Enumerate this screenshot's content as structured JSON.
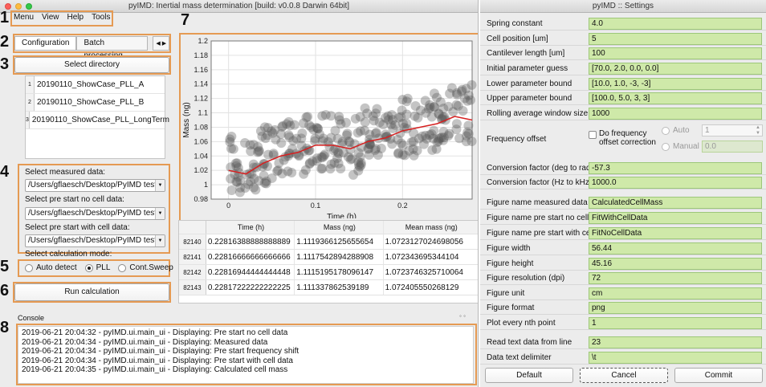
{
  "main_window": {
    "title": "pyIMD: Inertial mass determination [build: v0.0.8 Darwin 64bit]",
    "menu": [
      "Menu",
      "View",
      "Help",
      "Tools"
    ],
    "tabs": [
      "Configuration",
      "Batch processing"
    ],
    "select_directory_label": "Select directory",
    "directories": [
      {
        "num": "1",
        "name": "20190110_ShowCase_PLL_A"
      },
      {
        "num": "2",
        "name": "20190110_ShowCase_PLL_B"
      },
      {
        "num": "3",
        "name": "20190110_ShowCase_PLL_LongTerm"
      }
    ],
    "measured_label": "Select measured data:",
    "measured_value": "/Users/gflaesch/Desktop/PyIMD test/p",
    "prestart_no_cell_label": "Select pre start no cell data:",
    "prestart_no_cell_value": "/Users/gflaesch/Desktop/PyIMD test/p",
    "prestart_with_cell_label": "Select pre start with cell data:",
    "prestart_with_cell_value": "/Users/gflaesch/Desktop/PyIMD test/p",
    "calc_mode_label": "Select calculation mode:",
    "modes": [
      "Auto detect",
      "PLL",
      "Cont.Sweep"
    ],
    "selected_mode": "PLL",
    "run_label": "Run calculation",
    "console_label": "Console",
    "console_lines": [
      "2019-06-21 20:04:32 - pyIMD.ui.main_ui - Displaying: Pre start no cell data",
      "2019-06-21 20:04:34 - pyIMD.ui.main_ui - Displaying: Measured data",
      "2019-06-21 20:04:34 - pyIMD.ui.main_ui - Displaying: Pre start frequency shift",
      "2019-06-21 20:04:34 - pyIMD.ui.main_ui - Displaying: Pre start with cell data",
      "2019-06-21 20:04:35 - pyIMD.ui.main_ui - Displaying: Calculated cell mass"
    ],
    "callouts": [
      "1",
      "2",
      "3",
      "4",
      "5",
      "6",
      "7",
      "8"
    ]
  },
  "table": {
    "headers": [
      "Time (h)",
      "Mass (ng)",
      "Mean mass (ng)"
    ],
    "rows": [
      {
        "idx": "82140",
        "time": "0.22816388888888889",
        "mass": "1.1119366125655654",
        "mean": "1.0723127024698056"
      },
      {
        "idx": "82141",
        "time": "0.22816666666666666",
        "mass": "1.1117542894288908",
        "mean": "1.072343695344104"
      },
      {
        "idx": "82142",
        "time": "0.22816944444444448",
        "mass": "1.1115195178096147",
        "mean": "1.0723746325710064"
      },
      {
        "idx": "82143",
        "time": "0.22817222222222225",
        "mass": "1.111337862539189",
        "mean": "1.072405550268129"
      }
    ]
  },
  "chart_data": {
    "type": "scatter",
    "title": "",
    "xlabel": "Time (h)",
    "ylabel": "Mass (ng)",
    "xlim": [
      -0.02,
      0.28
    ],
    "ylim": [
      0.98,
      1.2
    ],
    "x_ticks": [
      "0",
      "0.1",
      "0.2"
    ],
    "y_ticks": [
      "0.98",
      "1",
      "1.02",
      "1.04",
      "1.06",
      "1.08",
      "1.1",
      "1.12",
      "1.14",
      "1.16",
      "1.18",
      "1.2"
    ],
    "grid": true,
    "series": [
      {
        "color": "#555555",
        "style": "scatter",
        "x": [
          0.0,
          0.02,
          0.04,
          0.06,
          0.08,
          0.1,
          0.12,
          0.14,
          0.16,
          0.18,
          0.2,
          0.22,
          0.24,
          0.26,
          0.28
        ],
        "y": [
          1.03,
          1.02,
          1.04,
          1.05,
          1.05,
          1.06,
          1.06,
          1.05,
          1.07,
          1.07,
          1.08,
          1.08,
          1.09,
          1.1,
          1.1
        ]
      },
      {
        "color": "#d62020",
        "style": "line",
        "x": [
          0.0,
          0.02,
          0.04,
          0.06,
          0.08,
          0.1,
          0.12,
          0.14,
          0.16,
          0.18,
          0.2,
          0.22,
          0.24,
          0.26,
          0.28
        ],
        "y": [
          1.02,
          1.015,
          1.03,
          1.04,
          1.045,
          1.055,
          1.055,
          1.05,
          1.06,
          1.065,
          1.075,
          1.08,
          1.085,
          1.095,
          1.09
        ]
      }
    ]
  },
  "settings": {
    "title": "pyIMD :: Settings",
    "fields": [
      {
        "label": "Spring constant",
        "value": "4.0"
      },
      {
        "label": "Cell position [um]",
        "value": "5"
      },
      {
        "label": "Cantilever length [um]",
        "value": "100"
      },
      {
        "label": "Initial parameter guess",
        "value": "[70.0, 2.0, 0.0, 0.0]"
      },
      {
        "label": "Lower parameter bound",
        "value": "[10.0, 1.0, -3, -3]"
      },
      {
        "label": "Upper parameter bound",
        "value": "[100.0, 5.0, 3, 3]"
      },
      {
        "label": "Rolling average window size",
        "value": "1000"
      }
    ],
    "frequency_offset": {
      "label": "Frequency offset",
      "checkbox_label": "Do frequency offset correction",
      "auto_label": "Auto",
      "auto_value": "1",
      "manual_label": "Manual",
      "manual_value": "0.0"
    },
    "fields2": [
      {
        "label": "Conversion factor (deg to rad)",
        "value": "-57.3"
      },
      {
        "label": "Conversion factor (Hz to kHz)",
        "value": "1000.0"
      },
      {
        "label": "Figure name measured data",
        "value": "CalculatedCellMass"
      },
      {
        "label": "Figure name pre start no cell",
        "value": "FitWithCellData"
      },
      {
        "label": "Figure name pre start with cell",
        "value": "FitNoCellData"
      },
      {
        "label": "Figure width",
        "value": "56.44"
      },
      {
        "label": "Figure height",
        "value": "45.16"
      },
      {
        "label": "Figure resolution (dpi)",
        "value": "72"
      },
      {
        "label": "Figure unit",
        "value": "cm"
      },
      {
        "label": "Figure format",
        "value": "png"
      },
      {
        "label": "Plot every nth point",
        "value": "1"
      },
      {
        "label": "Read text data from line",
        "value": "23"
      },
      {
        "label": "Data text delimiter",
        "value": "\\t"
      }
    ],
    "buttons": [
      "Default",
      "Cancel",
      "Commit"
    ]
  },
  "colors": {
    "callout_border": "#e59a53",
    "field_bg": "#cfe9a9",
    "fit_line": "#d62020",
    "scatter": "#555555"
  }
}
